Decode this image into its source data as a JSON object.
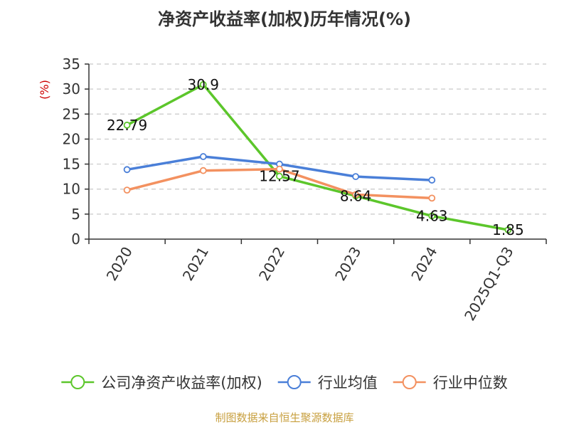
{
  "chart_data": {
    "type": "line",
    "title": "净资产收益率(加权)历年情况(%)",
    "xlabel": "",
    "ylabel": "(%)",
    "categories": [
      "2020",
      "2021",
      "2022",
      "2023",
      "2024",
      "2025Q1-Q3"
    ],
    "ylim": [
      0,
      35
    ],
    "yticks": [
      0,
      5,
      10,
      15,
      20,
      25,
      30,
      35
    ],
    "grid": true,
    "legend_position": "bottom",
    "series": [
      {
        "name": "公司净资产收益率(加权)",
        "color": "#5cc62b",
        "values": [
          22.79,
          30.9,
          12.57,
          8.64,
          4.63,
          1.85
        ],
        "labels": [
          "22.79",
          "30.9",
          "12.57",
          "8.64",
          "4.63",
          "1.85"
        ]
      },
      {
        "name": "行业均值",
        "color": "#4a7fd8",
        "values": [
          13.9,
          16.5,
          15.0,
          12.5,
          11.8,
          null
        ]
      },
      {
        "name": "行业中位数",
        "color": "#f39160",
        "values": [
          9.8,
          13.7,
          14.0,
          8.9,
          8.2,
          null
        ]
      }
    ],
    "source": "制图数据来自恒生聚源数据库"
  }
}
